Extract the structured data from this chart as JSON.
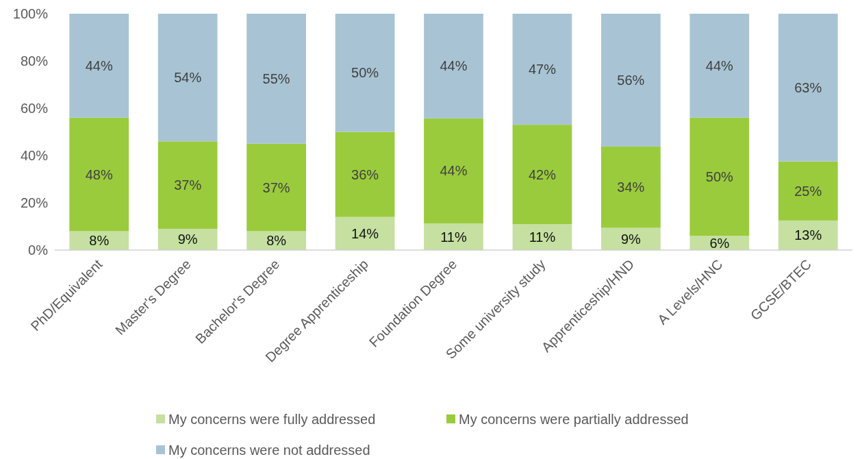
{
  "chart_data": {
    "type": "bar",
    "stacked": true,
    "legend": "bottom",
    "grid": false,
    "categories": [
      "PhD/Equivalent",
      "Master's Degree",
      "Bachelor's Degree",
      "Degree Apprenticeship",
      "Foundation Degree",
      "Some university study",
      "Apprenticeship/HND",
      "A Levels/HNC",
      "GCSE/BTEC"
    ],
    "series": [
      {
        "name": "My concerns were fully addressed",
        "color": "#c5e0a0",
        "values": [
          8,
          9,
          8,
          14,
          11.3,
          11,
          9.4,
          6,
          12.5
        ],
        "value_labels": [
          "8%",
          "9%",
          "8%",
          "14%",
          "11%",
          "11%",
          "9%",
          "6%",
          "13%"
        ]
      },
      {
        "name": "My concerns were partially addressed",
        "color": "#9acb3c",
        "values": [
          48,
          37,
          37,
          36,
          44.4,
          42,
          34.4,
          50,
          25
        ],
        "value_labels": [
          "48%",
          "37%",
          "37%",
          "36%",
          "44%",
          "42%",
          "34%",
          "50%",
          "25%"
        ]
      },
      {
        "name": "My concerns were not addressed",
        "color": "#a8c4d4",
        "values": [
          44,
          54,
          55,
          50,
          44.3,
          47,
          56.2,
          44,
          62.5
        ],
        "value_labels": [
          "44%",
          "54%",
          "55%",
          "50%",
          "44%",
          "47%",
          "56%",
          "44%",
          "63%"
        ]
      }
    ],
    "ylim": [
      0,
      100
    ],
    "yticks": [
      {
        "value": 0,
        "label": "0%"
      },
      {
        "value": 20,
        "label": "20%"
      },
      {
        "value": 40,
        "label": "40%"
      },
      {
        "value": 60,
        "label": "60%"
      },
      {
        "value": 80,
        "label": "80%"
      },
      {
        "value": 100,
        "label": "100%"
      }
    ]
  }
}
